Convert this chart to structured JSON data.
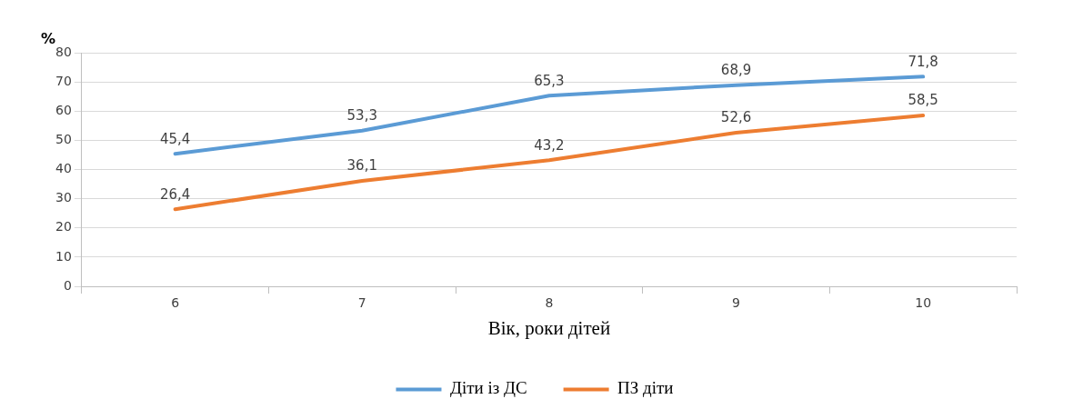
{
  "chart_data": {
    "type": "line",
    "ylabel": "%",
    "xlabel": "Вік, роки дітей",
    "categories": [
      "6",
      "7",
      "8",
      "9",
      "10"
    ],
    "series": [
      {
        "name": "Діти із ДС",
        "color": "#5b9bd5",
        "values": [
          45.4,
          53.3,
          65.3,
          68.9,
          71.8
        ],
        "value_labels": [
          "45,4",
          "53,3",
          "65,3",
          "68,9",
          "71,8"
        ]
      },
      {
        "name": "ПЗ діти",
        "color": "#ed7d31",
        "values": [
          26.4,
          36.1,
          43.2,
          52.6,
          58.5
        ],
        "value_labels": [
          "26,4",
          "36,1",
          "43,2",
          "52,6",
          "58,5"
        ]
      }
    ],
    "ylim": [
      0,
      80
    ],
    "yticks": [
      0,
      10,
      20,
      30,
      40,
      50,
      60,
      70,
      80
    ],
    "grid": "y",
    "legend": "bottom",
    "marker": "none",
    "line_style": "solid"
  }
}
